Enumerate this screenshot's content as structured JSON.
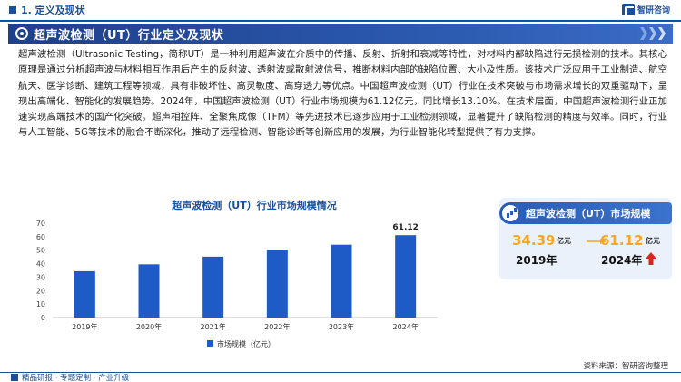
{
  "header": {
    "section": "1. 定义及现状",
    "logo_text": "智研咨询"
  },
  "title_bar": {
    "title": "超声波检测（UT）行业定义及现状"
  },
  "intro": {
    "paragraph": "超声波检测（Ultrasonic Testing，简称UT）是一种利用超声波在介质中的传播、反射、折射和衰减等特性，对材料内部缺陷进行无损检测的技术。其核心原理是通过分析超声波与材料相互作用后产生的反射波、透射波或散射波信号，推断材料内部的缺陷位置、大小及性质。该技术广泛应用于工业制造、航空航天、医学诊断、建筑工程等领域，具有非破坏性、高灵敏度、高穿透力等优点。中国超声波检测（UT）行业在技术突破与市场需求增长的双重驱动下，呈现出高端化、智能化的发展趋势。2024年，中国超声波检测（UT）行业市场规模为61.12亿元，同比增长13.10%。在技术层面，中国超声波检测行业正加速实现高端技术的国产化突破。超声相控阵、全聚焦成像（TFM）等先进技术已逐步应用于工业检测领域，显著提升了缺陷检测的精度与效率。同时，行业与人工智能、5G等技术的融合不断深化，推动了远程检测、智能诊断等创新应用的发展，为行业智能化转型提供了有力支撑。"
  },
  "chart_data": {
    "type": "bar",
    "title": "超声波检测（UT）行业市场规模情况",
    "categories": [
      "2019年",
      "2020年",
      "2021年",
      "2022年",
      "2023年",
      "2024年"
    ],
    "series": [
      {
        "name": "市场规模（亿元）",
        "values": [
          34.39,
          39.5,
          45.2,
          50.3,
          54.04,
          61.12
        ]
      }
    ],
    "data_labels": {
      "2024年": "61.12"
    },
    "ylim": [
      0,
      70
    ],
    "yticks": [
      0,
      10,
      20,
      30,
      40,
      50,
      60,
      70
    ],
    "legend": "bottom",
    "grid": false,
    "bar_color": "#1f5bc6"
  },
  "side_card": {
    "title": "超声波检测（UT）市场规模",
    "from_value": "34.39",
    "from_unit": "亿元",
    "from_year": "2019年",
    "to_value": "61.12",
    "to_unit": "亿元",
    "to_year": "2024年",
    "accent": "#f5a623",
    "up_color": "#d9261c"
  },
  "source": "资料来源：智研咨询整理",
  "footer": {
    "text": "精品研报 · 专题定制 · 产业升级"
  }
}
